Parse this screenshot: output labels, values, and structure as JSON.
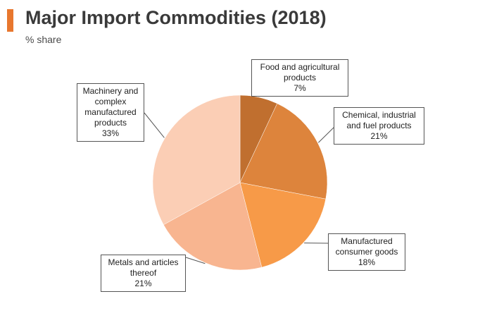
{
  "header": {
    "title": "Major Import Commodities (2018)",
    "subtitle": "% share",
    "accent_color": "#e8772e"
  },
  "chart_data": {
    "type": "pie",
    "title": "Major Import Commodities (2018)",
    "subtitle": "% share",
    "slices": [
      {
        "label": "Food and agricultural products",
        "value": 7,
        "value_label": "7%",
        "color": "#c06f2f"
      },
      {
        "label": "Chemical, industrial and fuel products",
        "value": 21,
        "value_label": "21%",
        "color": "#dd843c"
      },
      {
        "label": "Manufactured consumer goods",
        "value": 18,
        "value_label": "18%",
        "color": "#f79a48"
      },
      {
        "label": "Metals and articles thereof",
        "value": 21,
        "value_label": "21%",
        "color": "#f8b590"
      },
      {
        "label": "Machinery and complex manufactured products",
        "value": 33,
        "value_label": "33%",
        "color": "#fbceb5"
      }
    ],
    "start_angle": "12 o'clock",
    "direction": "clockwise",
    "legend": "none (callout labels)"
  }
}
